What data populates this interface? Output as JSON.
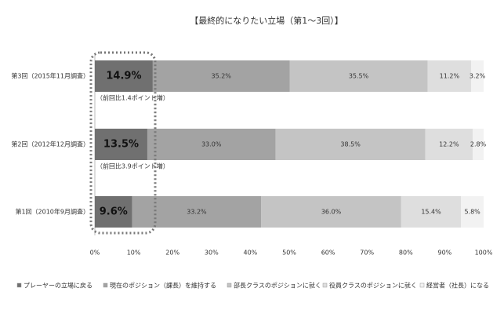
{
  "chart_data": {
    "type": "stacked-bar-horizontal",
    "title": "【最終的になりたい立場（第1～3回）】",
    "categories": [
      "第3回（2015年11月調査）",
      "第2回（2012年12月調査）",
      "第1回（2010年9月調査）"
    ],
    "series": [
      {
        "name": "プレーヤーの立場に戻る",
        "color": "#707070",
        "values": [
          14.9,
          13.5,
          9.6
        ],
        "value_labels": [
          "14.9%",
          "13.5%",
          "9.6%"
        ]
      },
      {
        "name": "現在のポジション（課長）を維持する",
        "color": "#a3a3a3",
        "values": [
          35.2,
          33.0,
          33.2
        ],
        "value_labels": [
          "35.2%",
          "33.0%",
          "33.2%"
        ]
      },
      {
        "name": "部長クラスのポジションに就く",
        "color": "#c4c4c4",
        "values": [
          35.5,
          38.5,
          36.0
        ],
        "value_labels": [
          "35.5%",
          "38.5%",
          "36.0%"
        ]
      },
      {
        "name": "役員クラスのポジションに就く",
        "color": "#dedede",
        "values": [
          11.2,
          12.2,
          15.4
        ],
        "value_labels": [
          "11.2%",
          "12.2%",
          "15.4%"
        ]
      },
      {
        "name": "経営者（社長）になる",
        "color": "#f2f2f2",
        "values": [
          3.2,
          2.8,
          5.8
        ],
        "value_labels": [
          "3.2%",
          "2.8%",
          "5.8%"
        ]
      }
    ],
    "annotations": [
      "（前回比1.4ポイント増）",
      "（前回比3.9ポイント増）"
    ],
    "xlim": [
      0,
      100
    ],
    "xticks": [
      {
        "value": 0,
        "label": "0%"
      },
      {
        "value": 10,
        "label": "10%"
      },
      {
        "value": 20,
        "label": "20%"
      },
      {
        "value": 30,
        "label": "30%"
      },
      {
        "value": 40,
        "label": "40%"
      },
      {
        "value": 50,
        "label": "50%"
      },
      {
        "value": 60,
        "label": "60%"
      },
      {
        "value": 70,
        "label": "70%"
      },
      {
        "value": 80,
        "label": "80%"
      },
      {
        "value": 90,
        "label": "90%"
      },
      {
        "value": 100,
        "label": "100%"
      }
    ]
  }
}
